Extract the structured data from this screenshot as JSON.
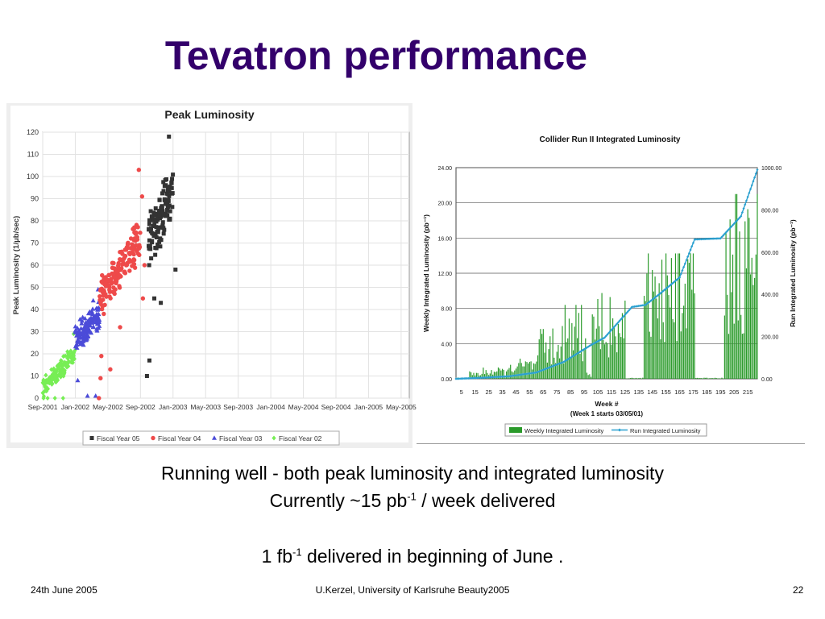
{
  "slide": {
    "title": "Tevatron performance",
    "line1": "Running well - both peak luminosity and integrated luminosity",
    "line2_pre": "Currently ~15 pb",
    "line2_sup": "-1",
    "line2_post": " / week delivered",
    "line3_pre": "1 fb",
    "line3_sup": "-1",
    "line3_post": " delivered in beginning of June .",
    "footer_left": "24th June 2005",
    "footer_center": "U.Kerzel, University of Karlsruhe Beauty2005",
    "footer_right": "22"
  },
  "colors": {
    "title": "#33006b",
    "fy05": "#333333",
    "fy04": "#ee4a4a",
    "fy03": "#4b4bd8",
    "fy02": "#77ee55",
    "weekly_bar": "#2a9a2a",
    "run_line": "#2aa0d0"
  },
  "chart_data": [
    {
      "type": "scatter",
      "title": "Peak Luminosity",
      "ylabel": "Peak Luminosity (1/μb/sec)",
      "xlabel": "",
      "ylim": [
        0,
        120
      ],
      "yticks": [
        0,
        10,
        20,
        30,
        40,
        50,
        60,
        70,
        80,
        90,
        100,
        110,
        120
      ],
      "xtick_labels": [
        "Sep-2001",
        "Jan-2002",
        "May-2002",
        "Sep-2002",
        "Jan-2003",
        "May-2003",
        "Sep-2003",
        "Jan-2004",
        "May-2004",
        "Sep-2004",
        "Jan-2005",
        "May-2005"
      ],
      "x_unit": "months since Sep-2001",
      "grid": true,
      "legend_position": "bottom",
      "series": [
        {
          "name": "Fiscal Year 05",
          "marker": "square",
          "color": "#333333",
          "bands": [
            {
              "x": [
                13,
                16
              ],
              "center": [
                70,
                94
              ],
              "spread": 14,
              "n": 130
            }
          ],
          "extras": [
            [
              12.8,
              10
            ],
            [
              13.1,
              17
            ],
            [
              13.7,
              45
            ],
            [
              15.5,
              118
            ],
            [
              16.3,
              58
            ],
            [
              14.5,
              43
            ]
          ]
        },
        {
          "name": "Fiscal Year 04",
          "marker": "circle",
          "color": "#ee4a4a",
          "bands": [
            {
              "x": [
                7,
                12
              ],
              "center": [
                45,
                72
              ],
              "spread": 10,
              "n": 160
            }
          ],
          "extras": [
            [
              7.1,
              9
            ],
            [
              7.2,
              19
            ],
            [
              7.5,
              38
            ],
            [
              8.3,
              13
            ],
            [
              9.5,
              32
            ],
            [
              11.8,
              103
            ],
            [
              12.2,
              91
            ],
            [
              12.3,
              45
            ],
            [
              12.5,
              60
            ],
            [
              6.9,
              0
            ]
          ]
        },
        {
          "name": "Fiscal Year 03",
          "marker": "triangle",
          "color": "#4b4bd8",
          "bands": [
            {
              "x": [
                4,
                7
              ],
              "center": [
                27,
                37
              ],
              "spread": 8,
              "n": 150
            }
          ],
          "extras": [
            [
              4.3,
              8
            ],
            [
              5.5,
              1
            ],
            [
              6.5,
              1
            ],
            [
              6.8,
              49
            ],
            [
              6.2,
              44
            ]
          ]
        },
        {
          "name": "Fiscal Year 02",
          "marker": "diamond",
          "color": "#77ee55",
          "bands": [
            {
              "x": [
                0,
                4
              ],
              "center": [
                5,
                20
              ],
              "spread": 5,
              "n": 140
            }
          ],
          "extras": [
            [
              0.1,
              8
            ],
            [
              0.1,
              0
            ],
            [
              0.6,
              0
            ],
            [
              1.5,
              0
            ],
            [
              2.5,
              0
            ],
            [
              3.8,
              29
            ]
          ]
        }
      ]
    },
    {
      "type": "bar+line",
      "title": "Collider Run II Integrated Luminosity",
      "xlabel": "Week  #",
      "xlabel_note": "(Week 1 starts 03/05/01)",
      "ylabel": "Weekly Integrated Luminosity (pb⁻¹)",
      "y2label": "Run Integrated Luminosity (pb⁻¹)",
      "ylim": [
        0,
        24
      ],
      "y2lim": [
        0,
        1000
      ],
      "yticks": [
        "0.00",
        "4.00",
        "8.00",
        "12.00",
        "16.00",
        "20.00",
        "24.00"
      ],
      "y2ticks": [
        "0.00",
        "200.00",
        "400.00",
        "600.00",
        "800.00",
        "1000.00"
      ],
      "xticks": [
        5,
        15,
        25,
        35,
        45,
        55,
        65,
        75,
        85,
        95,
        105,
        115,
        125,
        135,
        145,
        155,
        165,
        175,
        185,
        195,
        205,
        215
      ],
      "weeks": [
        1,
        222
      ],
      "grid": true,
      "legend": [
        "Weekly Integrated Luminosity",
        "Run Integrated Luminosity"
      ],
      "legend_position": "bottom",
      "weekly_profile": [
        {
          "weeks": [
            1,
            10
          ],
          "level": 0.1
        },
        {
          "weeks": [
            11,
            20
          ],
          "level": 0.6
        },
        {
          "weeks": [
            21,
            40
          ],
          "level": 0.9
        },
        {
          "weeks": [
            41,
            60
          ],
          "level": 1.6
        },
        {
          "weeks": [
            61,
            80
          ],
          "level": 4.0
        },
        {
          "weeks": [
            81,
            96
          ],
          "level": 5.6
        },
        {
          "weeks": [
            97,
            100
          ],
          "level": 0.5
        },
        {
          "weeks": [
            101,
            125
          ],
          "level": 6.5
        },
        {
          "weeks": [
            126,
            138
          ],
          "level": 0.1
        },
        {
          "weeks": [
            139,
            176
          ],
          "level": 9.5
        },
        {
          "weeks": [
            177,
            197
          ],
          "level": 0.1
        },
        {
          "weeks": [
            198,
            222
          ],
          "level": 14.0
        }
      ],
      "run_points": [
        [
          1,
          0
        ],
        [
          20,
          5
        ],
        [
          40,
          12
        ],
        [
          60,
          30
        ],
        [
          80,
          80
        ],
        [
          100,
          160
        ],
        [
          110,
          195
        ],
        [
          130,
          340
        ],
        [
          140,
          350
        ],
        [
          150,
          400
        ],
        [
          165,
          480
        ],
        [
          176,
          660
        ],
        [
          195,
          665
        ],
        [
          210,
          770
        ],
        [
          222,
          990
        ]
      ]
    }
  ]
}
